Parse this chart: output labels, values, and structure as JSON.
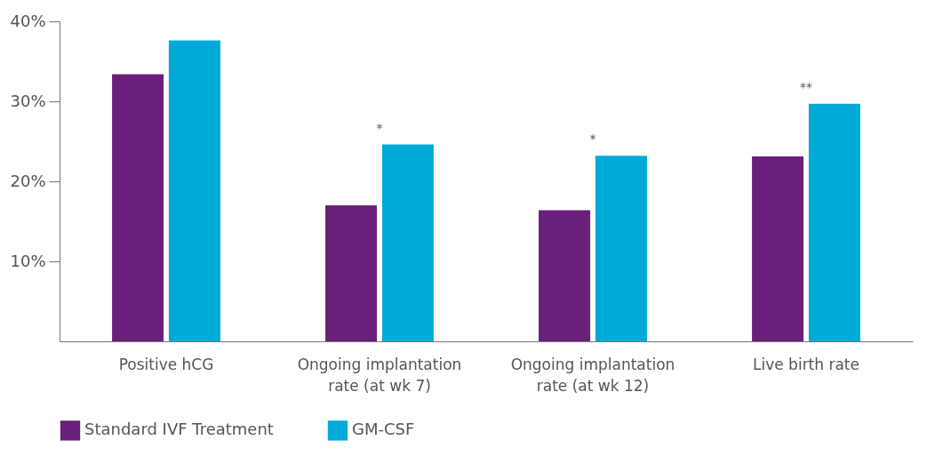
{
  "chart_data": {
    "type": "bar",
    "categories": [
      "Positive hCG",
      "Ongoing implantation rate (at wk 7)",
      "Ongoing implantation rate (at wk 12)",
      "Live birth rate"
    ],
    "series": [
      {
        "name": "Standard IVF Treatment",
        "color": "#6a1f7a",
        "values": [
          33.4,
          17.0,
          16.4,
          23.1
        ]
      },
      {
        "name": "GM-CSF",
        "color": "#00aad8",
        "values": [
          37.6,
          24.6,
          23.2,
          29.7
        ]
      }
    ],
    "ylim": [
      0,
      40
    ],
    "yticks": [
      {
        "value": 10,
        "label": "10%"
      },
      {
        "value": 20,
        "label": "20%"
      },
      {
        "value": 30,
        "label": "30%"
      },
      {
        "value": 40,
        "label": "40%"
      }
    ],
    "annotations": [
      "*",
      "*",
      "**"
    ],
    "grid": false,
    "legend": "bottom"
  }
}
